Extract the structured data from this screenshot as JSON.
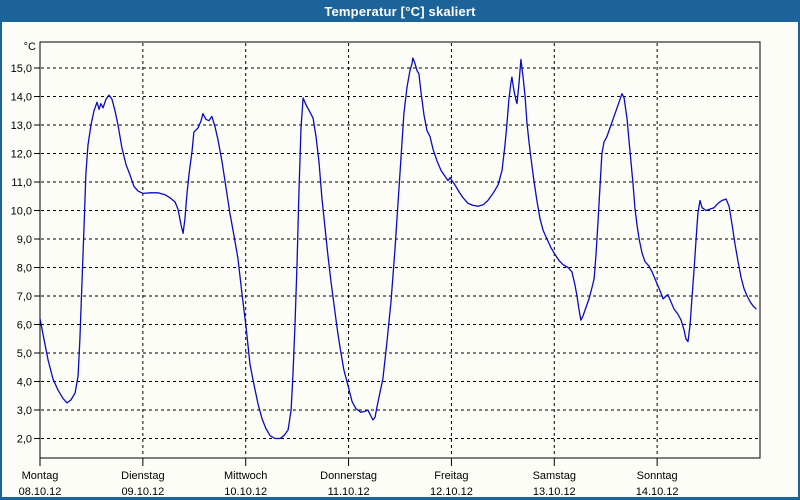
{
  "window": {
    "title": "Temperatur [°C] skaliert"
  },
  "colors": {
    "title_bar_bg": "#1b6398",
    "title_text": "#ffffff",
    "line_color": "#0a0ac5",
    "grid_color": "#000000",
    "background": "#fdfdf8"
  },
  "chart_data": {
    "type": "line",
    "title": "Temperatur [°C] skaliert",
    "ylabel": "°C",
    "y_axis": {
      "unit_label": "°C",
      "min": 2,
      "max": 15,
      "tick_step": 1,
      "tick_values": [
        15,
        14,
        13,
        12,
        11,
        10,
        9,
        8,
        7,
        6,
        5,
        4,
        3,
        2
      ],
      "tick_labels": [
        "15,0",
        "14,0",
        "13,0",
        "12,0",
        "11,0",
        "10,0",
        "9,0",
        "8,0",
        "7,0",
        "6,0",
        "5,0",
        "4,0",
        "3,0",
        "2,0"
      ]
    },
    "x_axis": {
      "hours_total": 168,
      "day_tick_hours": [
        0,
        24,
        48,
        72,
        96,
        120,
        144
      ],
      "days": [
        {
          "name": "Montag",
          "date": "08.10.12"
        },
        {
          "name": "Dienstag",
          "date": "09.10.12"
        },
        {
          "name": "Mittwoch",
          "date": "10.10.12"
        },
        {
          "name": "Donnerstag",
          "date": "11.10.12"
        },
        {
          "name": "Freitag",
          "date": "12.10.12"
        },
        {
          "name": "Samstag",
          "date": "13.10.12"
        },
        {
          "name": "Sonntag",
          "date": "14.10.12"
        }
      ]
    },
    "grid": "dashed",
    "legend": "none",
    "series": [
      {
        "name": "Temperatur",
        "unit": "°C",
        "points": [
          [
            0,
            6.2
          ],
          [
            0.9,
            5.5
          ],
          [
            1.9,
            4.75
          ],
          [
            3,
            4.1
          ],
          [
            4.2,
            3.7
          ],
          [
            5.4,
            3.4
          ],
          [
            6.3,
            3.25
          ],
          [
            7.2,
            3.35
          ],
          [
            8.2,
            3.6
          ],
          [
            8.9,
            4.2
          ],
          [
            9.3,
            5.5
          ],
          [
            9.8,
            7.5
          ],
          [
            10.3,
            9.5
          ],
          [
            10.7,
            11.3
          ],
          [
            11.2,
            12.3
          ],
          [
            11.9,
            13
          ],
          [
            12.6,
            13.5
          ],
          [
            13.3,
            13.8
          ],
          [
            13.8,
            13.55
          ],
          [
            14.2,
            13.75
          ],
          [
            14.7,
            13.6
          ],
          [
            15.4,
            13.9
          ],
          [
            16.1,
            14.05
          ],
          [
            16.8,
            13.9
          ],
          [
            17.5,
            13.5
          ],
          [
            18.2,
            13
          ],
          [
            19.1,
            12.2
          ],
          [
            20.1,
            11.6
          ],
          [
            21,
            11.25
          ],
          [
            21.9,
            10.85
          ],
          [
            22.9,
            10.68
          ],
          [
            24,
            10.6
          ],
          [
            25.7,
            10.62
          ],
          [
            27.5,
            10.62
          ],
          [
            29.2,
            10.55
          ],
          [
            30.3,
            10.45
          ],
          [
            31.5,
            10.3
          ],
          [
            32.2,
            10.05
          ],
          [
            32.9,
            9.5
          ],
          [
            33.4,
            9.2
          ],
          [
            33.8,
            9.7
          ],
          [
            34.3,
            10.6
          ],
          [
            34.8,
            11.3
          ],
          [
            35.5,
            12.1
          ],
          [
            35.9,
            12.75
          ],
          [
            36.9,
            12.9
          ],
          [
            37.6,
            13.15
          ],
          [
            38,
            13.4
          ],
          [
            38.7,
            13.2
          ],
          [
            39.4,
            13.15
          ],
          [
            40.1,
            13.3
          ],
          [
            40.8,
            12.95
          ],
          [
            41.5,
            12.5
          ],
          [
            42.5,
            11.7
          ],
          [
            43.4,
            10.8
          ],
          [
            44.3,
            9.9
          ],
          [
            45.3,
            9.1
          ],
          [
            46.2,
            8.3
          ],
          [
            47.1,
            7.1
          ],
          [
            48.1,
            5.9
          ],
          [
            49,
            4.6
          ],
          [
            49.9,
            3.9
          ],
          [
            50.9,
            3.2
          ],
          [
            51.8,
            2.7
          ],
          [
            52.7,
            2.35
          ],
          [
            53.7,
            2.1
          ],
          [
            54.8,
            2
          ],
          [
            56,
            2
          ],
          [
            56.9,
            2.1
          ],
          [
            57.9,
            2.3
          ],
          [
            58.6,
            3
          ],
          [
            59,
            4.2
          ],
          [
            59.5,
            6
          ],
          [
            60,
            8.2
          ],
          [
            60.4,
            10.6
          ],
          [
            60.9,
            12.9
          ],
          [
            61.4,
            13.95
          ],
          [
            62.1,
            13.7
          ],
          [
            63,
            13.45
          ],
          [
            63.7,
            13.25
          ],
          [
            64.4,
            12.6
          ],
          [
            65.1,
            11.7
          ],
          [
            65.8,
            10.4
          ],
          [
            66.5,
            9.4
          ],
          [
            67.2,
            8.4
          ],
          [
            67.9,
            7.5
          ],
          [
            68.6,
            6.7
          ],
          [
            69.3,
            5.9
          ],
          [
            70,
            5.2
          ],
          [
            70.9,
            4.4
          ],
          [
            71.9,
            3.85
          ],
          [
            72.8,
            3.3
          ],
          [
            73.7,
            3.05
          ],
          [
            74.9,
            2.92
          ],
          [
            75.8,
            2.95
          ],
          [
            76.5,
            3
          ],
          [
            77,
            2.85
          ],
          [
            77.7,
            2.65
          ],
          [
            78.2,
            2.75
          ],
          [
            78.6,
            3.1
          ],
          [
            79.3,
            3.6
          ],
          [
            80,
            4.1
          ],
          [
            80.9,
            5.3
          ],
          [
            81.9,
            6.8
          ],
          [
            82.8,
            8.6
          ],
          [
            83.5,
            10.2
          ],
          [
            84.2,
            11.8
          ],
          [
            84.9,
            13.4
          ],
          [
            85.6,
            14.3
          ],
          [
            86.3,
            14.9
          ],
          [
            86.8,
            15.15
          ],
          [
            87,
            15.35
          ],
          [
            87.5,
            15.15
          ],
          [
            88,
            14.9
          ],
          [
            88.4,
            14.8
          ],
          [
            88.9,
            14.15
          ],
          [
            89.6,
            13.35
          ],
          [
            90.3,
            12.8
          ],
          [
            91,
            12.6
          ],
          [
            91.7,
            12.15
          ],
          [
            92.6,
            11.75
          ],
          [
            93.6,
            11.4
          ],
          [
            94.5,
            11.2
          ],
          [
            95.2,
            11.05
          ],
          [
            95.7,
            11.15
          ],
          [
            96.1,
            11.05
          ],
          [
            96.8,
            10.9
          ],
          [
            97.8,
            10.65
          ],
          [
            98.7,
            10.45
          ],
          [
            99.9,
            10.25
          ],
          [
            101,
            10.18
          ],
          [
            102.2,
            10.15
          ],
          [
            103.4,
            10.2
          ],
          [
            104.5,
            10.35
          ],
          [
            105.7,
            10.6
          ],
          [
            106.9,
            10.9
          ],
          [
            107.8,
            11.4
          ],
          [
            108.5,
            12.3
          ],
          [
            109,
            13.1
          ],
          [
            109.4,
            13.9
          ],
          [
            109.9,
            14.5
          ],
          [
            110.1,
            14.68
          ],
          [
            110.6,
            14.2
          ],
          [
            111.1,
            13.85
          ],
          [
            111.3,
            13.75
          ],
          [
            111.8,
            14.5
          ],
          [
            112.2,
            15.3
          ],
          [
            112.7,
            14.7
          ],
          [
            113.2,
            14
          ],
          [
            113.6,
            13.1
          ],
          [
            114.1,
            12.4
          ],
          [
            114.6,
            11.8
          ],
          [
            115.3,
            11
          ],
          [
            116,
            10.3
          ],
          [
            116.7,
            9.7
          ],
          [
            117.4,
            9.3
          ],
          [
            118.3,
            9
          ],
          [
            119.2,
            8.7
          ],
          [
            120.2,
            8.45
          ],
          [
            121.1,
            8.25
          ],
          [
            122,
            8.1
          ],
          [
            123.2,
            8
          ],
          [
            124.1,
            7.85
          ],
          [
            124.8,
            7.4
          ],
          [
            125.3,
            7
          ],
          [
            125.8,
            6.5
          ],
          [
            126.2,
            6.15
          ],
          [
            126.7,
            6.3
          ],
          [
            127.4,
            6.6
          ],
          [
            128.1,
            6.9
          ],
          [
            128.8,
            7.3
          ],
          [
            129.3,
            7.6
          ],
          [
            129.7,
            8.4
          ],
          [
            130.2,
            9.6
          ],
          [
            130.7,
            10.9
          ],
          [
            131.1,
            12
          ],
          [
            131.6,
            12.4
          ],
          [
            132.3,
            12.6
          ],
          [
            133,
            12.9
          ],
          [
            133.7,
            13.2
          ],
          [
            134.4,
            13.5
          ],
          [
            135.1,
            13.8
          ],
          [
            135.8,
            14.1
          ],
          [
            136.3,
            13.95
          ],
          [
            137,
            13.2
          ],
          [
            137.4,
            12.5
          ],
          [
            137.9,
            11.7
          ],
          [
            138.4,
            10.9
          ],
          [
            138.8,
            10.1
          ],
          [
            139.3,
            9.5
          ],
          [
            139.8,
            9
          ],
          [
            140.5,
            8.5
          ],
          [
            141.2,
            8.2
          ],
          [
            142.1,
            8.05
          ],
          [
            142.8,
            7.85
          ],
          [
            143.5,
            7.6
          ],
          [
            144.2,
            7.35
          ],
          [
            144.9,
            7.1
          ],
          [
            145.4,
            6.9
          ],
          [
            146.1,
            7
          ],
          [
            146.5,
            7.05
          ],
          [
            147.2,
            6.8
          ],
          [
            147.9,
            6.55
          ],
          [
            148.9,
            6.35
          ],
          [
            149.6,
            6.15
          ],
          [
            150.3,
            5.8
          ],
          [
            150.7,
            5.5
          ],
          [
            151.2,
            5.4
          ],
          [
            151.7,
            6
          ],
          [
            152.1,
            6.9
          ],
          [
            152.6,
            7.9
          ],
          [
            153.1,
            9
          ],
          [
            153.5,
            9.9
          ],
          [
            154,
            10.35
          ],
          [
            154.5,
            10.1
          ],
          [
            155.4,
            10
          ],
          [
            156.3,
            10.05
          ],
          [
            157.3,
            10.1
          ],
          [
            158.2,
            10.25
          ],
          [
            159.1,
            10.35
          ],
          [
            160.1,
            10.4
          ],
          [
            160.8,
            10.15
          ],
          [
            161.5,
            9.5
          ],
          [
            162.2,
            8.8
          ],
          [
            162.9,
            8.2
          ],
          [
            163.6,
            7.65
          ],
          [
            164.3,
            7.25
          ],
          [
            165,
            7
          ],
          [
            165.7,
            6.8
          ],
          [
            166.4,
            6.65
          ],
          [
            167.1,
            6.55
          ]
        ]
      }
    ]
  }
}
